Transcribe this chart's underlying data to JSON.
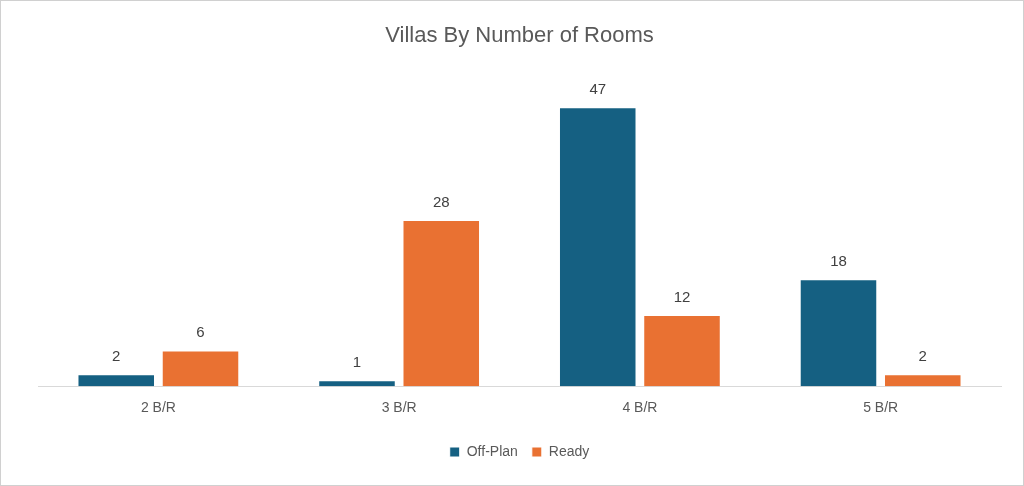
{
  "chart_data": {
    "type": "bar",
    "title": "Villas By Number of Rooms",
    "categories": [
      "2 B/R",
      "3 B/R",
      "4 B/R",
      "5 B/R"
    ],
    "series": [
      {
        "name": "Off-Plan",
        "color": "#156082",
        "values": [
          2,
          1,
          47,
          18
        ]
      },
      {
        "name": "Ready",
        "color": "#e97132",
        "values": [
          6,
          28,
          12,
          2
        ]
      }
    ],
    "data_labels": true,
    "legend": "bottom",
    "tick_labels": "x"
  }
}
